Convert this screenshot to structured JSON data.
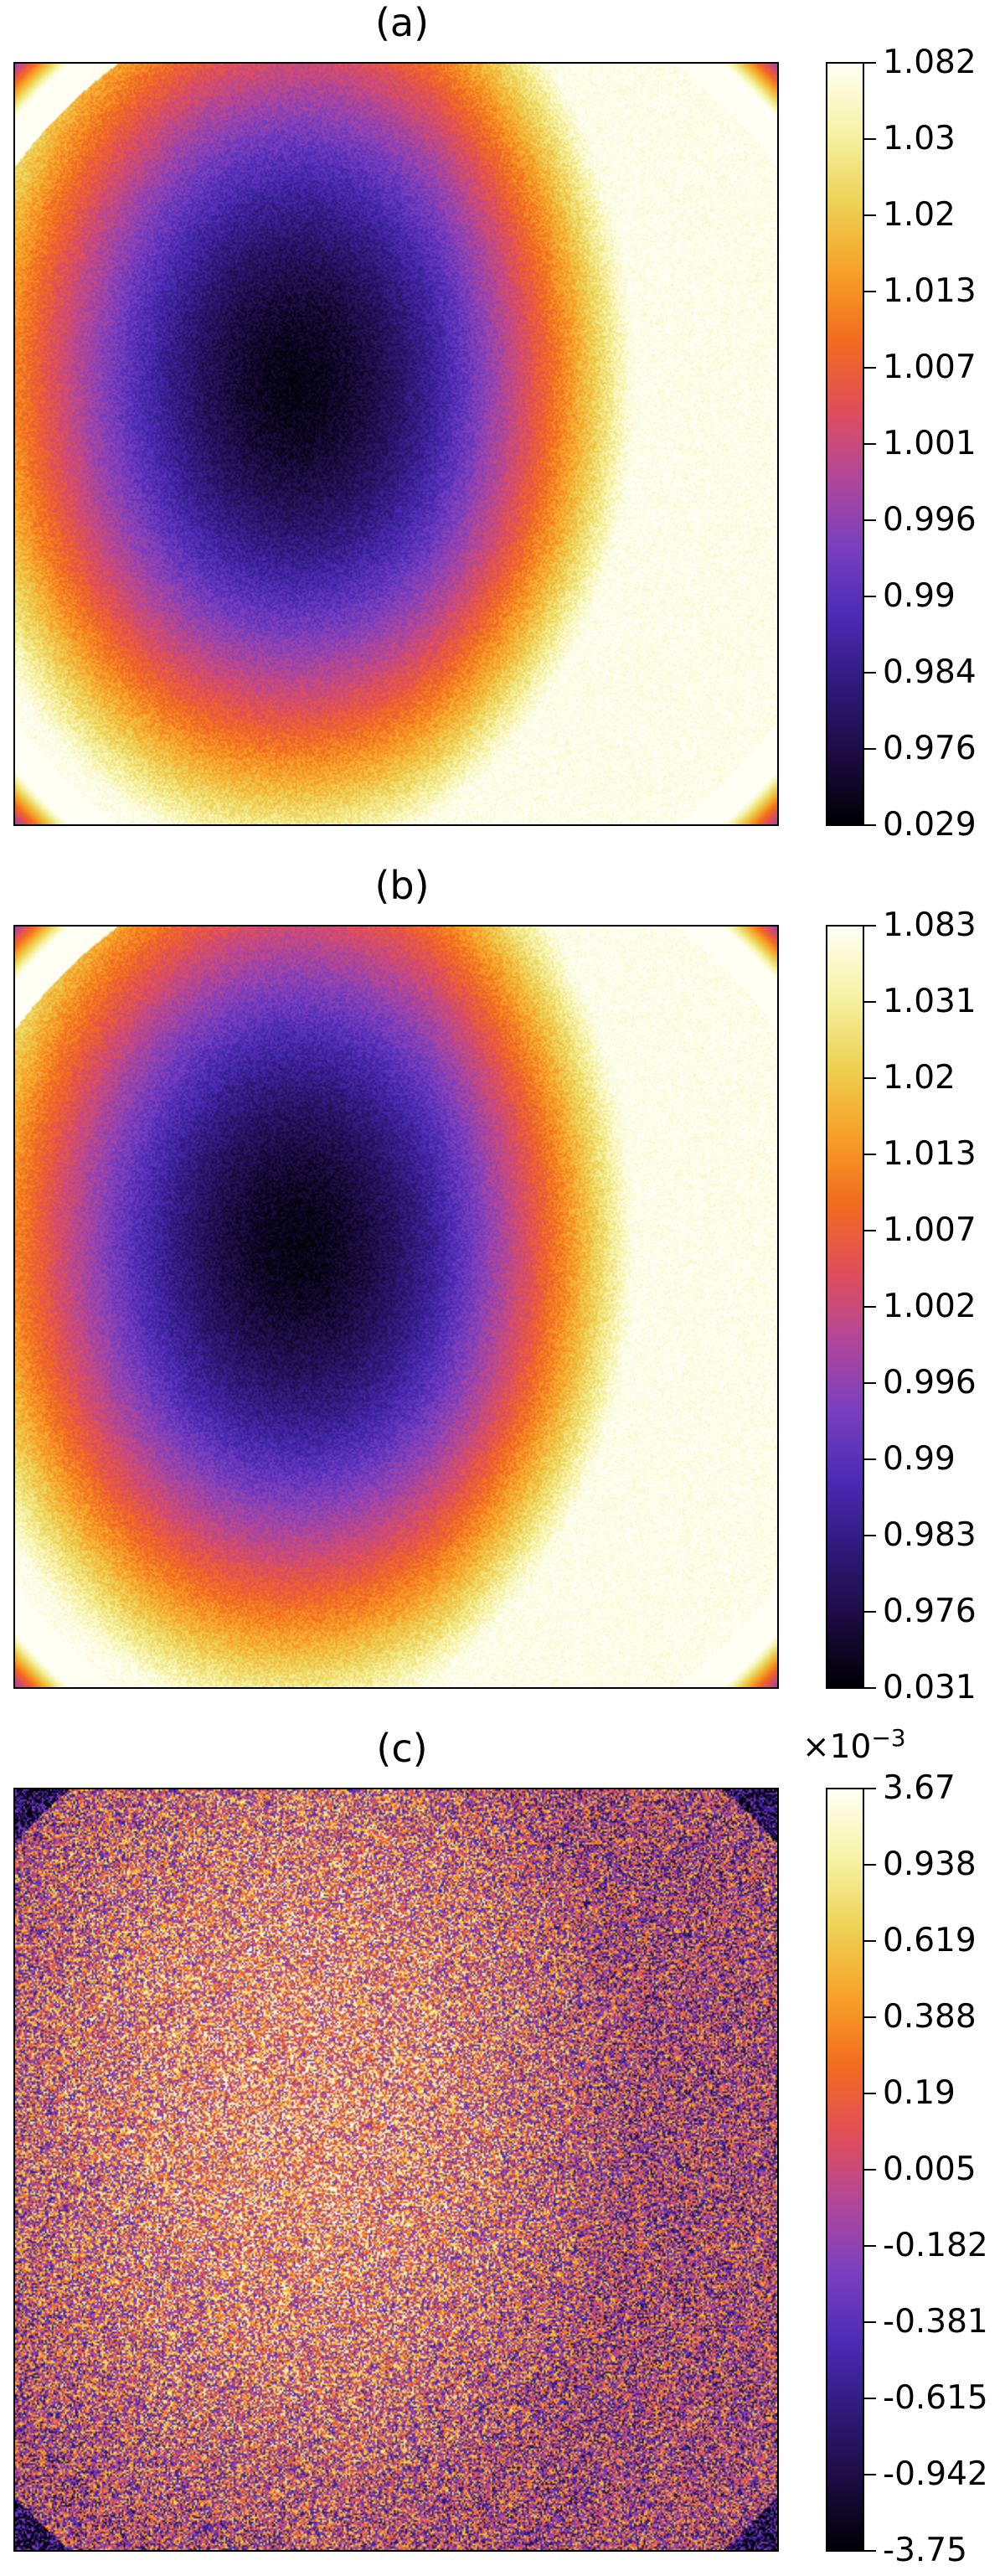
{
  "colors": {
    "cmap": [
      "#000004",
      "#1b0c41",
      "#2e1a7a",
      "#4a2bb5",
      "#7a3fc0",
      "#b0479b",
      "#e04e5a",
      "#f26b1f",
      "#f7a128",
      "#edd254",
      "#f6f3a4",
      "#fffff4"
    ]
  },
  "chart_data": [
    {
      "type": "heatmap",
      "panel_label": "(a)",
      "multiplier": "",
      "colorbar_ticks": [
        "1.082",
        "1.03",
        "1.02",
        "1.013",
        "1.007",
        "1.001",
        "0.996",
        "0.99",
        "0.984",
        "0.976",
        "0.029"
      ],
      "pattern": "smooth",
      "note_min_region": "dark minimum centered left-of-center, upper-middle"
    },
    {
      "type": "heatmap",
      "panel_label": "(b)",
      "multiplier": "",
      "colorbar_ticks": [
        "1.083",
        "1.031",
        "1.02",
        "1.013",
        "1.007",
        "1.002",
        "0.996",
        "0.99",
        "0.983",
        "0.976",
        "0.031"
      ],
      "pattern": "smooth"
    },
    {
      "type": "heatmap",
      "panel_label": "(c)",
      "multiplier_base": "×10",
      "multiplier_exp": "−3",
      "colorbar_ticks": [
        "3.67",
        "0.938",
        "0.619",
        "0.388",
        "0.19",
        "0.005",
        "-0.182",
        "-0.381",
        "-0.615",
        "-0.942",
        "-3.75"
      ],
      "pattern": "noise"
    }
  ]
}
